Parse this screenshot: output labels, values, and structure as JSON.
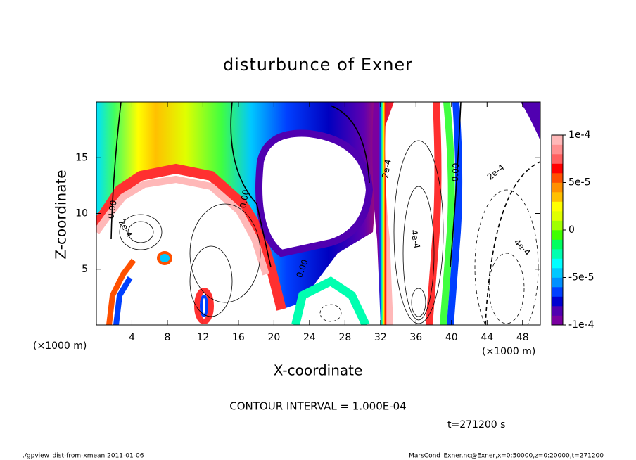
{
  "chart_data": {
    "type": "contour",
    "title": "disturbunce of Exner",
    "x_label": "X-coordinate",
    "y_label": "Z-coordinate",
    "x_unit": "(×1000 m)",
    "y_unit": "(×1000 m)",
    "xlim": [
      0,
      50
    ],
    "ylim": [
      0,
      20
    ],
    "xticks": [
      4,
      8,
      12,
      16,
      20,
      24,
      28,
      32,
      36,
      40,
      44,
      48
    ],
    "yticks": [
      5,
      10,
      15
    ],
    "colorbar": {
      "lim": [
        -0.0001,
        0.0001
      ],
      "ticks": [
        {
          "value": 0.0001,
          "label": "1e-4"
        },
        {
          "value": 5e-05,
          "label": "5e-5"
        },
        0,
        {
          "value": -5e-05,
          "label": "-5e-5"
        },
        {
          "value": -0.0001,
          "label": "-1e-4"
        }
      ],
      "colors": [
        "#7a00a0",
        "#5000b0",
        "#0000d0",
        "#0040ff",
        "#0090ff",
        "#00c8ff",
        "#00ffff",
        "#00ffb0",
        "#00ff60",
        "#40ff00",
        "#a0ff00",
        "#e0ff00",
        "#ffff00",
        "#ffc000",
        "#ff9000",
        "#ff5000",
        "#ff0000",
        "#ff6060",
        "#ff9090",
        "#ffb8b8"
      ]
    },
    "contour_labels": [
      "0.00",
      "0.00",
      "0.00",
      "2e-4",
      "4e-4",
      "0.00",
      "2e-4",
      "4e-4",
      "2e-4"
    ],
    "contour_interval": "CONTOUR INTERVAL = 1.000E-04",
    "time": "t=271200 s",
    "footer_left": "./gpview_dist-from-xmean  2011-01-06",
    "footer_right": "MarsCond_Exner.nc@Exner,x=0:50000,z=0:20000,t=271200"
  }
}
